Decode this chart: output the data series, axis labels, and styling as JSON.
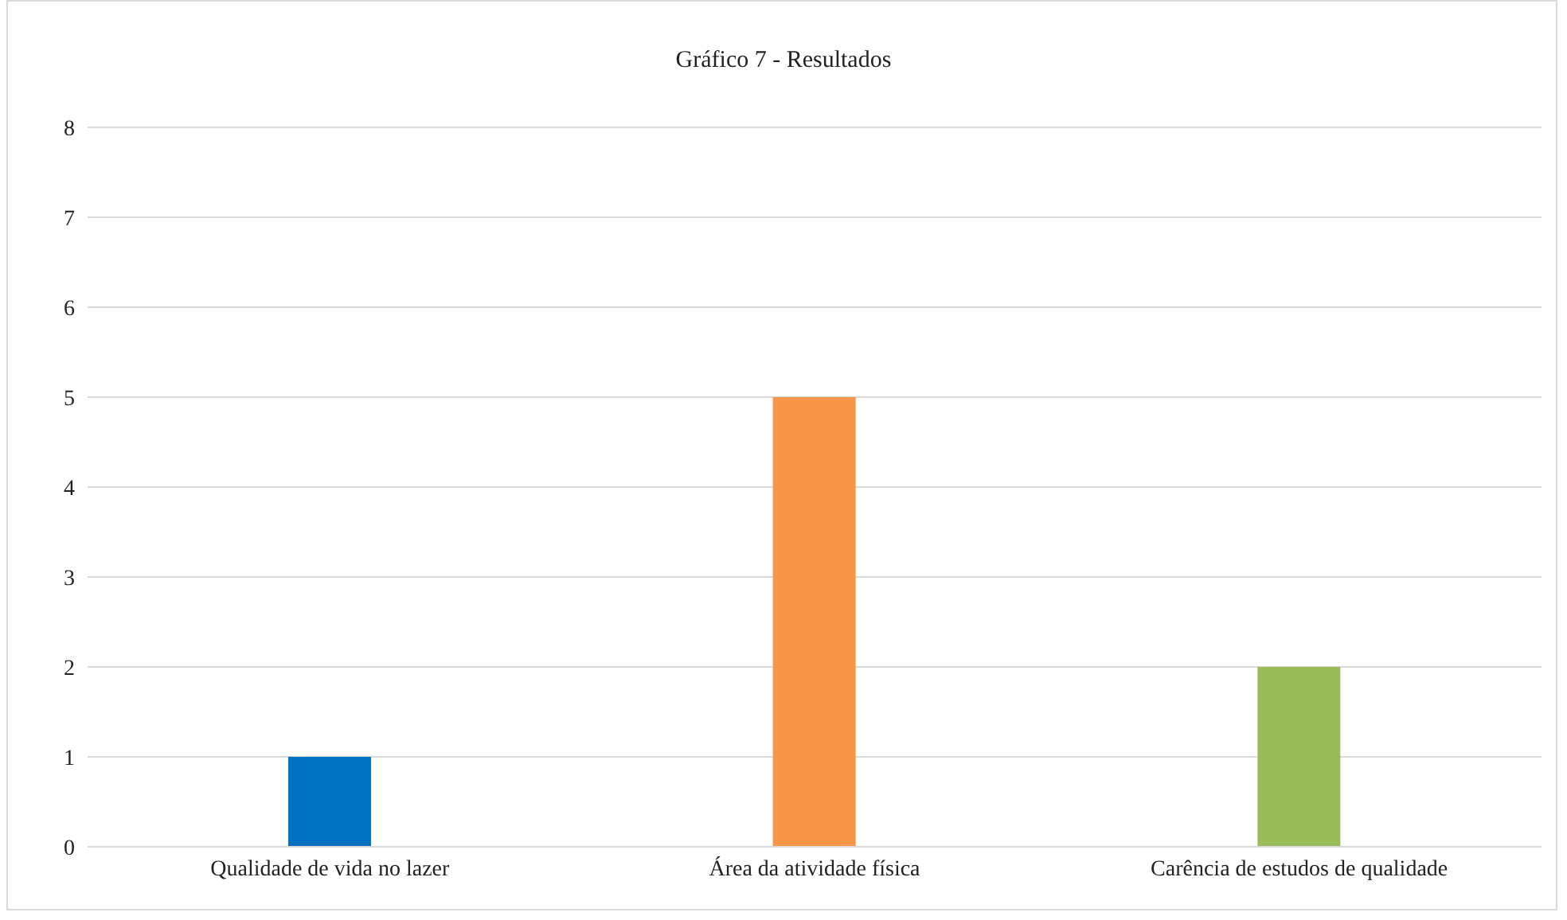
{
  "chart_data": {
    "type": "bar",
    "title": "Gráfico  7 - Resultados",
    "categories": [
      "Qualidade de vida no lazer",
      "Área da atividade física",
      "Carência de estudos de qualidade"
    ],
    "values": [
      1,
      5,
      2
    ],
    "colors": [
      "#0070c0",
      "#f79646",
      "#9bbb59"
    ],
    "ylim": [
      0,
      8
    ],
    "yticks": [
      0,
      1,
      2,
      3,
      4,
      5,
      6,
      7,
      8
    ],
    "grid": "y",
    "legend": false
  }
}
